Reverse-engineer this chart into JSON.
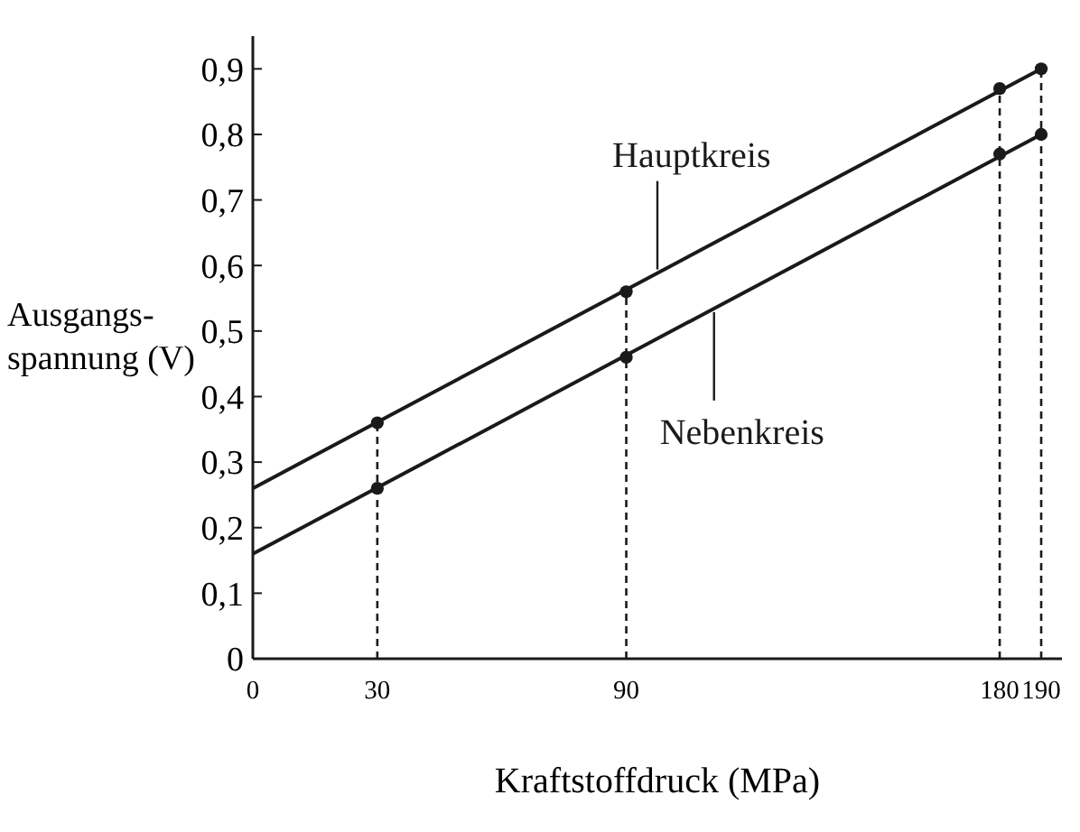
{
  "chart_data": {
    "type": "line",
    "xlabel": "Kraftstoffdruck (MPa)",
    "ylabel": "Ausgangs-\nspannung (V)",
    "xlim": [
      0,
      195
    ],
    "xticks": [
      0,
      30,
      90,
      180,
      190
    ],
    "ylim": [
      0,
      0.95
    ],
    "yticks": [
      0,
      {
        "value": 0.1,
        "label": "0,1"
      },
      {
        "value": 0.2,
        "label": "0,2"
      },
      {
        "value": 0.3,
        "label": "0,3"
      },
      {
        "value": 0.4,
        "label": "0,4"
      },
      {
        "value": 0.5,
        "label": "0,5"
      },
      {
        "value": 0.6,
        "label": "0,6"
      },
      {
        "value": 0.7,
        "label": "0,7"
      },
      {
        "value": 0.8,
        "label": "0,8"
      },
      {
        "value": 0.9,
        "label": "0,9"
      }
    ],
    "grid": false,
    "series": [
      {
        "name": "Hauptkreis",
        "color": "#1a1a1a",
        "x": [
          0,
          190
        ],
        "values": [
          0.26,
          0.9
        ],
        "marker": "none",
        "line_style": "solid"
      },
      {
        "name": "Nebenkreis",
        "color": "#1a1a1a",
        "x": [
          0,
          190
        ],
        "values": [
          0.16,
          0.8
        ],
        "marker": "none",
        "line_style": "solid"
      },
      {
        "type": "scatter",
        "color": "#1a1a1a",
        "x": [
          30,
          90,
          180,
          190
        ],
        "values": [
          0.36,
          0.56,
          0.87,
          0.9
        ],
        "marker": "circle"
      },
      {
        "type": "scatter",
        "color": "#1a1a1a",
        "x": [
          30,
          90,
          180,
          190
        ],
        "values": [
          0.26,
          0.46,
          0.77,
          0.8
        ],
        "marker": "circle"
      }
    ],
    "ref_lines": [
      {
        "axis": "x",
        "value": 30,
        "line_style": "dashed",
        "color": "#1a1a1a"
      },
      {
        "axis": "x",
        "value": 90,
        "line_style": "dashed",
        "color": "#1a1a1a"
      },
      {
        "axis": "x",
        "value": 180,
        "line_style": "dashed",
        "color": "#1a1a1a"
      },
      {
        "axis": "x",
        "value": 190,
        "line_style": "dashed",
        "color": "#1a1a1a"
      }
    ]
  }
}
